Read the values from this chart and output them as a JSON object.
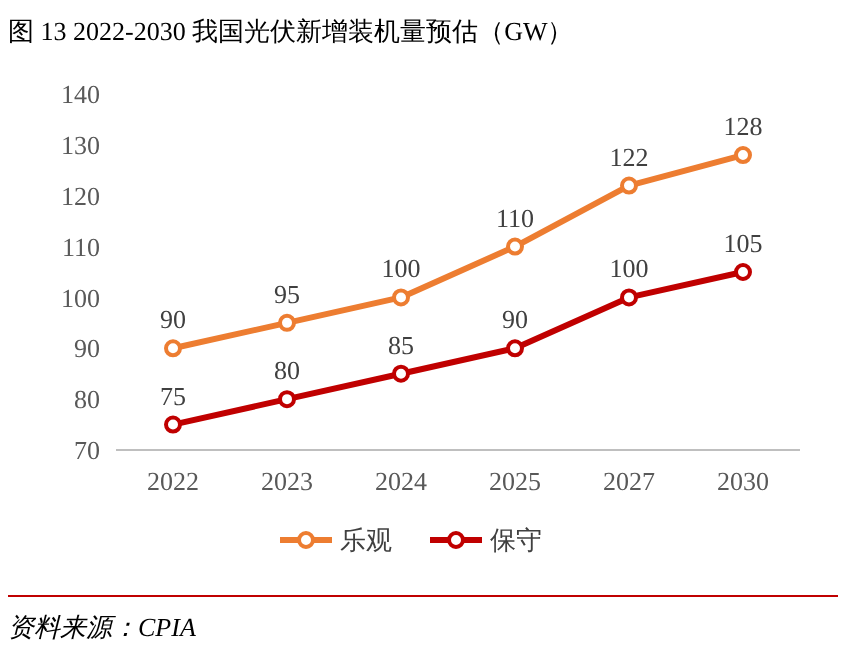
{
  "chart_data": {
    "type": "line",
    "title": "图 13 2022-2030 我国光伏新增装机量预估（GW）",
    "categories": [
      "2022",
      "2023",
      "2024",
      "2025",
      "2027",
      "2030"
    ],
    "series": [
      {
        "name": "乐观",
        "color": "#ed7d31",
        "values": [
          90,
          95,
          100,
          110,
          122,
          128
        ]
      },
      {
        "name": "保守",
        "color": "#c00000",
        "values": [
          75,
          80,
          85,
          90,
          100,
          105
        ]
      }
    ],
    "ylim": [
      70,
      140
    ],
    "yticks": [
      70,
      80,
      90,
      100,
      110,
      120,
      130,
      140
    ],
    "grid": false,
    "legend": "bottom",
    "marker": "circle",
    "line_style": "solid",
    "data_labels": true,
    "annotations": [
      "资料来源：CPIA"
    ]
  }
}
